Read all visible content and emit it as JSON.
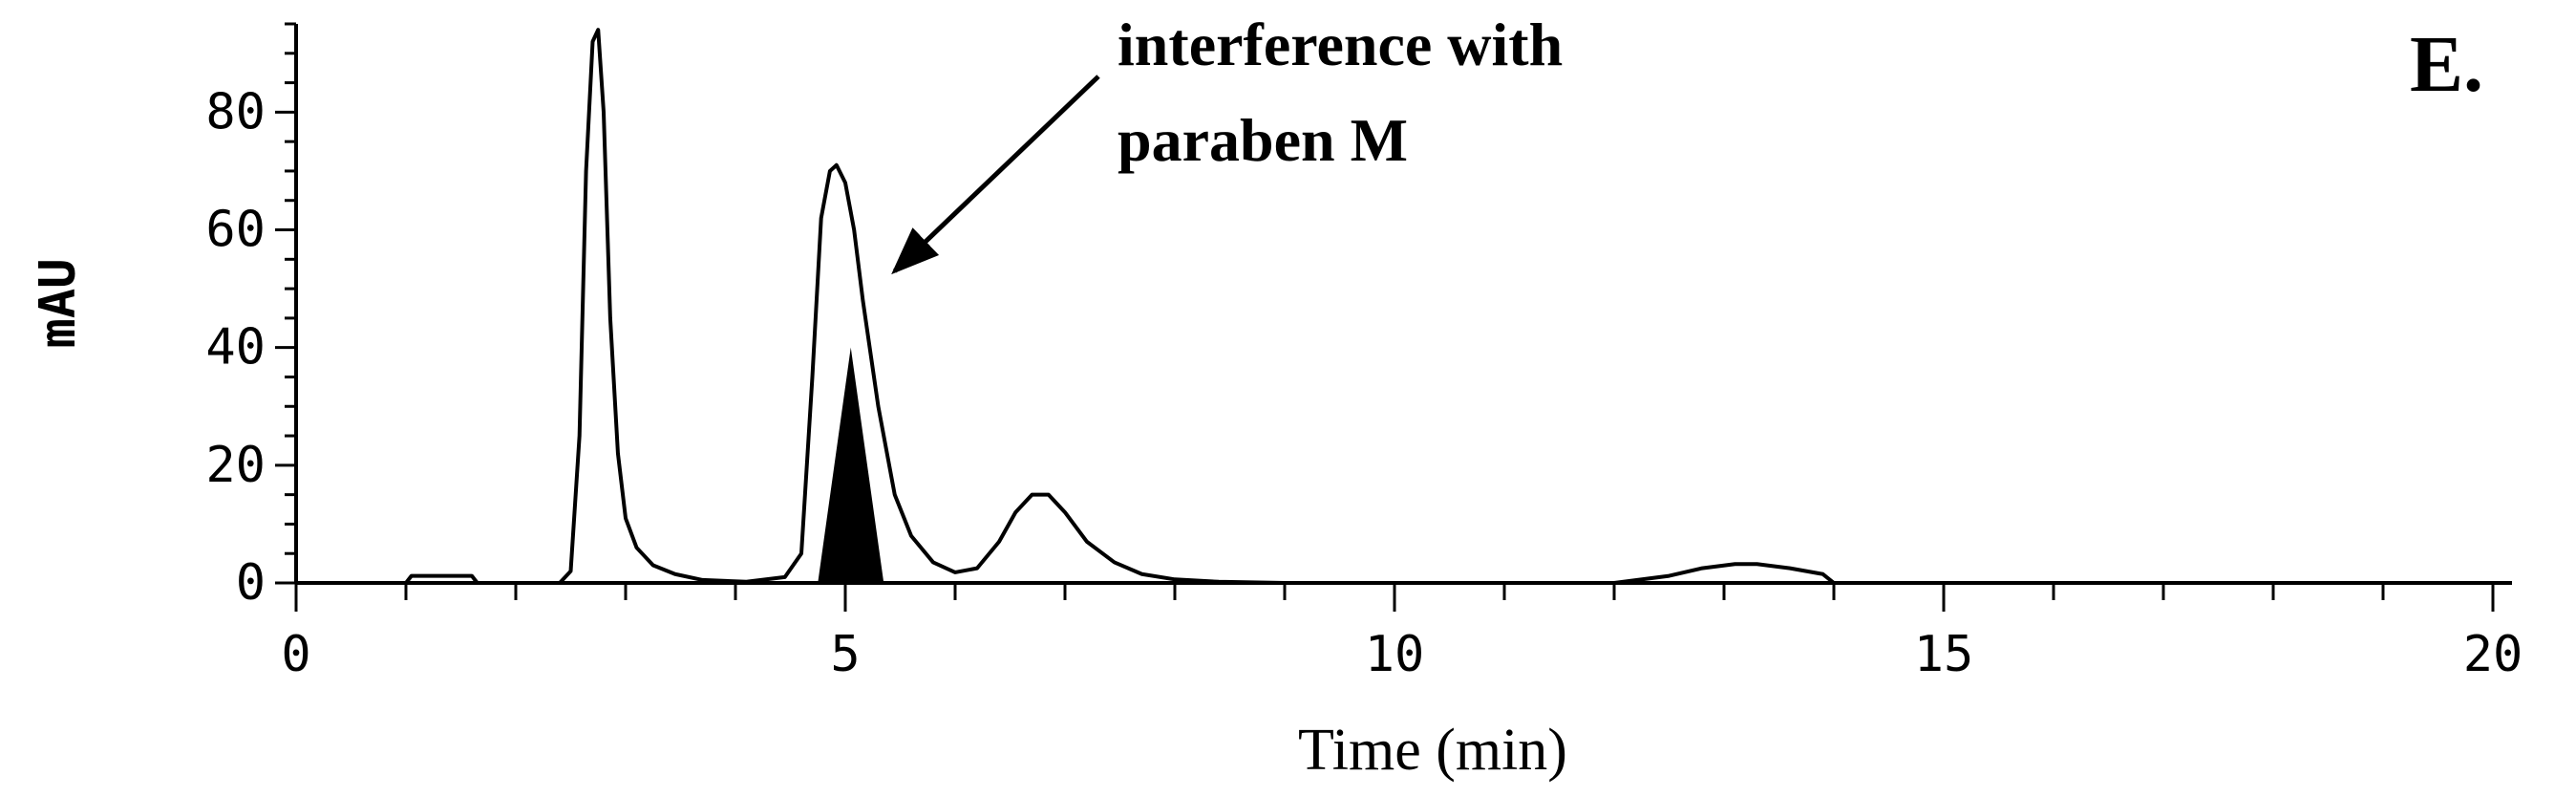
{
  "chart_data": {
    "type": "line",
    "title": "",
    "panel_label": "E.",
    "xlabel": "Time (min)",
    "ylabel": "mAU",
    "xlim": [
      0,
      20
    ],
    "ylim": [
      0,
      95
    ],
    "x_ticks": [
      0,
      5,
      10,
      15,
      20
    ],
    "y_ticks": [
      0,
      20,
      40,
      60,
      80
    ],
    "x_minor_step": 1,
    "y_minor_step": 5,
    "grid": false,
    "series": [
      {
        "x": [
          0,
          1.0,
          1.05,
          1.6,
          1.65,
          2.4,
          2.5,
          2.58,
          2.64,
          2.7,
          2.75,
          2.8,
          2.86,
          2.93,
          3.0,
          3.1,
          3.25,
          3.45,
          3.7,
          4.1,
          4.45,
          4.6,
          4.7,
          4.78,
          4.86,
          4.92,
          5.0,
          5.08,
          5.16,
          5.3,
          5.45,
          5.6,
          5.8,
          6.0,
          6.2,
          6.4,
          6.55,
          6.7,
          6.85,
          7.0,
          7.2,
          7.45,
          7.7,
          8.0,
          8.4,
          9.0,
          12.0,
          12.5,
          12.8,
          13.1,
          13.3,
          13.6,
          13.9,
          14.0,
          15.0,
          20.0
        ],
        "y": [
          0,
          0,
          1.2,
          1.2,
          0,
          0,
          2,
          25,
          70,
          92,
          94,
          80,
          45,
          22,
          11,
          6,
          3,
          1.5,
          0.5,
          0.2,
          1,
          5,
          35,
          62,
          70,
          71,
          68,
          60,
          48,
          30,
          15,
          8,
          3.5,
          1.8,
          2.5,
          7,
          12,
          15,
          15,
          12,
          7,
          3.5,
          1.5,
          0.6,
          0.2,
          0,
          0,
          1.2,
          2.5,
          3.2,
          3.2,
          2.5,
          1.5,
          0,
          0,
          0
        ]
      }
    ],
    "highlighted_peak": {
      "x": [
        4.75,
        5.05,
        5.35
      ],
      "y": [
        0,
        40,
        0
      ],
      "color": "#000000"
    },
    "annotations": [
      {
        "lines": [
          "interference with",
          "paraben M"
        ],
        "arrow_target": {
          "x": 5.45,
          "y": 53
        }
      }
    ]
  }
}
